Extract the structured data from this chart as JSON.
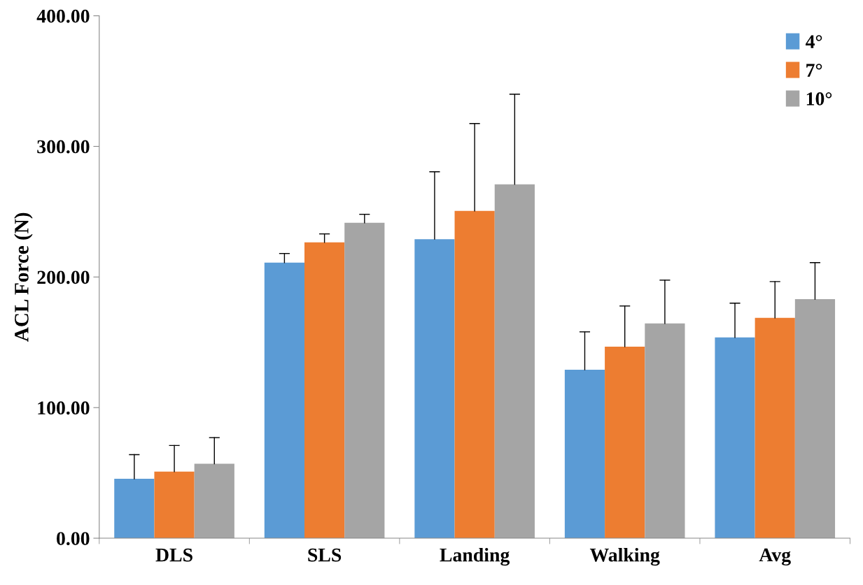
{
  "chart_data": {
    "type": "bar",
    "ylabel": "ACL Force (N)",
    "categories": [
      "DLS",
      "SLS",
      "Landing",
      "Walking",
      "Avg"
    ],
    "series": [
      {
        "name": "4°",
        "color": "#5b9bd5",
        "values": [
          45.5,
          211,
          229,
          129,
          153.7
        ],
        "errors": [
          [
            45.5,
            64
          ],
          [
            211,
            218
          ],
          [
            229,
            280.6
          ],
          [
            129,
            158
          ],
          [
            153.7,
            180
          ]
        ]
      },
      {
        "name": "7°",
        "color": "#ed7d31",
        "values": [
          51,
          226.5,
          250.6,
          146.7,
          168.7
        ],
        "errors": [
          [
            51,
            71
          ],
          [
            226.5,
            233
          ],
          [
            250.6,
            317.5
          ],
          [
            146.7,
            177.8
          ],
          [
            168.7,
            196.5
          ]
        ]
      },
      {
        "name": "10°",
        "color": "#a5a5a5",
        "values": [
          57,
          241.5,
          271,
          164.4,
          183
        ],
        "errors": [
          [
            57,
            77
          ],
          [
            241.5,
            248
          ],
          [
            271,
            340
          ],
          [
            164.4,
            197.6
          ],
          [
            183,
            211
          ]
        ]
      }
    ],
    "ylim": [
      0,
      400
    ],
    "yticks": [
      {
        "value": 0,
        "label": "0.00"
      },
      {
        "value": 100,
        "label": "100.00"
      },
      {
        "value": 200,
        "label": "200.00"
      },
      {
        "value": 300,
        "label": "300.00"
      },
      {
        "value": 400,
        "label": "400.00"
      }
    ],
    "grid": false,
    "legend": "top right"
  }
}
